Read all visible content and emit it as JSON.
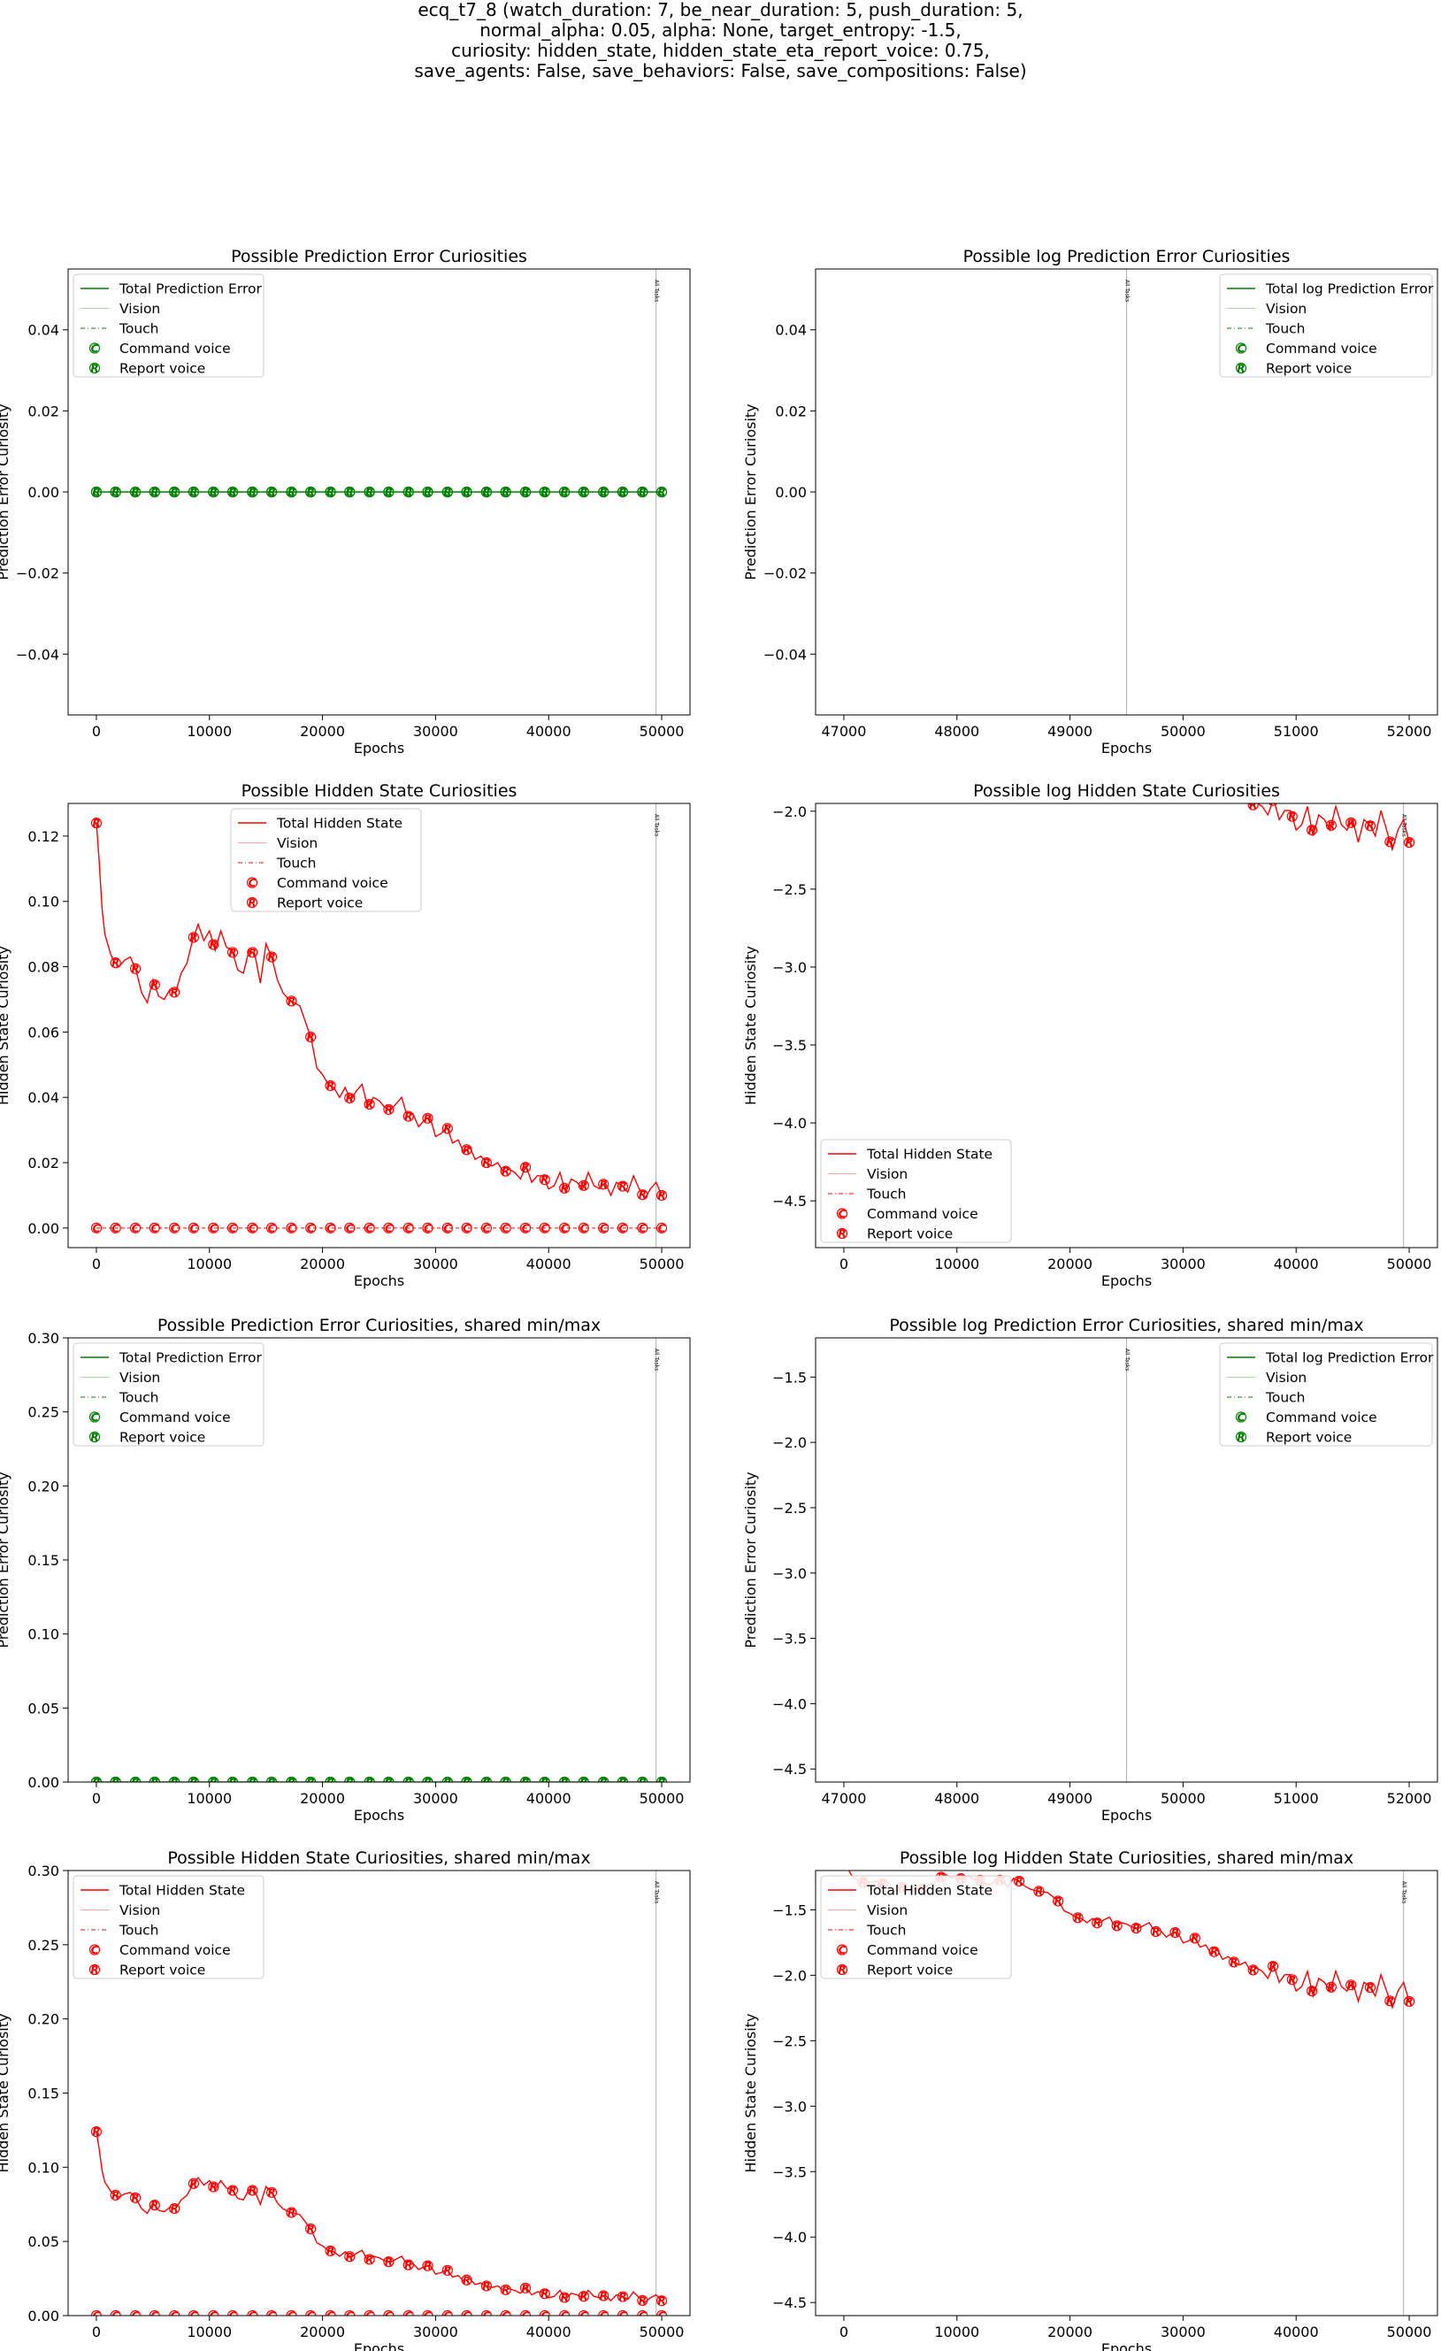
{
  "figure": {
    "title_lines": [
      "ecq_t7_8 (watch_duration: 7, be_near_duration: 5, push_duration: 5,",
      "normal_alpha: 0.05, alpha: None, target_entropy: -1.5,",
      "curiosity: hidden_state, hidden_state_eta_report_voice: 0.75,",
      "save_agents: False, save_behaviors: False, save_compositions: False)"
    ]
  },
  "chart_data": [
    {
      "type": "line",
      "title": "Possible Prediction Error Curiosities",
      "xlabel": "Epochs",
      "ylabel": "Prediction Error Curiosity",
      "xlim": [
        -2500,
        52500
      ],
      "ylim": [
        -0.055,
        0.055
      ],
      "xticks": [
        "0",
        "10000",
        "20000",
        "30000",
        "40000",
        "50000"
      ],
      "yticks": [
        "−0.04",
        "−0.02",
        "0.00",
        "0.02",
        "0.04"
      ],
      "legend_position": "upper left",
      "legend": [
        "Total Prediction Error",
        "Vision",
        "Touch",
        "Command voice",
        "Report voice"
      ],
      "color": "#008000",
      "vline": {
        "x": 49500,
        "label": "All Tasks"
      },
      "series_kind": "flat_zero"
    },
    {
      "type": "line",
      "title": "Possible log Prediction Error Curiosities",
      "xlabel": "Epochs",
      "ylabel": "Prediction Error Curiosity",
      "xlim": [
        46750,
        52250
      ],
      "ylim": [
        -0.055,
        0.055
      ],
      "xticks": [
        "47000",
        "48000",
        "49000",
        "50000",
        "51000",
        "52000"
      ],
      "yticks": [
        "−0.04",
        "−0.02",
        "0.00",
        "0.02",
        "0.04"
      ],
      "legend_position": "upper right",
      "legend": [
        "Total log Prediction Error",
        "Vision",
        "Touch",
        "Command voice",
        "Report voice"
      ],
      "color": "#008000",
      "vline": {
        "x": 49500,
        "label": "All Tasks"
      },
      "series_kind": "none"
    },
    {
      "type": "line",
      "title": "Possible Hidden State Curiosities",
      "xlabel": "Epochs",
      "ylabel": "Hidden State Curiosity",
      "xlim": [
        -2500,
        52500
      ],
      "ylim": [
        -0.006,
        0.13
      ],
      "xticks": [
        "0",
        "10000",
        "20000",
        "30000",
        "40000",
        "50000"
      ],
      "yticks": [
        "0.00",
        "0.02",
        "0.04",
        "0.06",
        "0.08",
        "0.10",
        "0.12"
      ],
      "legend_position": "upper center",
      "legend": [
        "Total Hidden State",
        "Vision",
        "Touch",
        "Command voice",
        "Report voice"
      ],
      "color": "#ff0000",
      "vline": {
        "x": 49500,
        "label": "All Tasks"
      },
      "series_kind": "linear"
    },
    {
      "type": "line",
      "title": "Possible log Hidden State Curiosities",
      "xlabel": "Epochs",
      "ylabel": "Hidden State Curiosity",
      "xlim": [
        -2500,
        52500
      ],
      "ylim": [
        -4.8,
        -1.95
      ],
      "xticks": [
        "0",
        "10000",
        "20000",
        "30000",
        "40000",
        "50000"
      ],
      "yticks": [
        "−4.5",
        "−4.0",
        "−3.5",
        "−3.0",
        "−2.5",
        "−2.0"
      ],
      "legend_position": "lower left",
      "legend": [
        "Total Hidden State",
        "Vision",
        "Touch",
        "Command voice",
        "Report voice"
      ],
      "color": "#ff0000",
      "vline": {
        "x": 49500,
        "label": "All Tasks"
      },
      "series_kind": "log"
    },
    {
      "type": "line",
      "title": "Possible Prediction Error Curiosities, shared min/max",
      "xlabel": "Epochs",
      "ylabel": "Prediction Error Curiosity",
      "xlim": [
        -2500,
        52500
      ],
      "ylim": [
        0,
        0.3
      ],
      "xticks": [
        "0",
        "10000",
        "20000",
        "30000",
        "40000",
        "50000"
      ],
      "yticks": [
        "0.00",
        "0.05",
        "0.10",
        "0.15",
        "0.20",
        "0.25",
        "0.30"
      ],
      "legend_position": "upper left",
      "legend": [
        "Total Prediction Error",
        "Vision",
        "Touch",
        "Command voice",
        "Report voice"
      ],
      "color": "#008000",
      "vline": {
        "x": 49500,
        "label": "All Tasks"
      },
      "series_kind": "flat_zero"
    },
    {
      "type": "line",
      "title": "Possible log Prediction Error Curiosities, shared min/max",
      "xlabel": "Epochs",
      "ylabel": "Prediction Error Curiosity",
      "xlim": [
        46750,
        52250
      ],
      "ylim": [
        -4.6,
        -1.2
      ],
      "xticks": [
        "47000",
        "48000",
        "49000",
        "50000",
        "51000",
        "52000"
      ],
      "yticks": [
        "−4.5",
        "−4.0",
        "−3.5",
        "−3.0",
        "−2.5",
        "−2.0",
        "−1.5"
      ],
      "legend_position": "upper right",
      "legend": [
        "Total log Prediction Error",
        "Vision",
        "Touch",
        "Command voice",
        "Report voice"
      ],
      "color": "#008000",
      "vline": {
        "x": 49500,
        "label": "All Tasks"
      },
      "series_kind": "none"
    },
    {
      "type": "line",
      "title": "Possible Hidden State Curiosities, shared min/max",
      "xlabel": "Epochs",
      "ylabel": "Hidden State Curiosity",
      "xlim": [
        -2500,
        52500
      ],
      "ylim": [
        0,
        0.3
      ],
      "xticks": [
        "0",
        "10000",
        "20000",
        "30000",
        "40000",
        "50000"
      ],
      "yticks": [
        "0.00",
        "0.05",
        "0.10",
        "0.15",
        "0.20",
        "0.25",
        "0.30"
      ],
      "legend_position": "upper left",
      "legend": [
        "Total Hidden State",
        "Vision",
        "Touch",
        "Command voice",
        "Report voice"
      ],
      "color": "#ff0000",
      "vline": {
        "x": 49500,
        "label": "All Tasks"
      },
      "series_kind": "linear"
    },
    {
      "type": "line",
      "title": "Possible log Hidden State Curiosities, shared min/max",
      "xlabel": "Epochs",
      "ylabel": "Hidden State Curiosity",
      "xlim": [
        -2500,
        52500
      ],
      "ylim": [
        -4.6,
        -1.2
      ],
      "xticks": [
        "0",
        "10000",
        "20000",
        "30000",
        "40000",
        "50000"
      ],
      "yticks": [
        "−4.5",
        "−4.0",
        "−3.5",
        "−3.0",
        "−2.5",
        "−2.0",
        "−1.5"
      ],
      "legend_position": "upper left",
      "legend": [
        "Total Hidden State",
        "Vision",
        "Touch",
        "Command voice",
        "Report voice"
      ],
      "color": "#ff0000",
      "vline": {
        "x": 49500,
        "label": "All Tasks"
      },
      "series_kind": "log"
    }
  ],
  "hidden_state_series": {
    "x": [
      0,
      250,
      500,
      750,
      1000,
      1250,
      1500,
      2000,
      2500,
      3000,
      3500,
      4000,
      4500,
      5000,
      5500,
      6000,
      6500,
      7000,
      7500,
      8000,
      8500,
      9000,
      9500,
      10000,
      10500,
      11000,
      11500,
      12000,
      12500,
      13000,
      13500,
      14000,
      14500,
      15000,
      15500,
      16000,
      16500,
      17000,
      17500,
      18000,
      18500,
      19000,
      19500,
      20000,
      20500,
      21000,
      21500,
      22000,
      22500,
      23000,
      23500,
      24000,
      24500,
      25000,
      25500,
      26000,
      26500,
      27000,
      27500,
      28000,
      28500,
      29000,
      29500,
      30000,
      30500,
      31000,
      31500,
      32000,
      32500,
      33000,
      33500,
      34000,
      34500,
      35000,
      35500,
      36000,
      36500,
      37000,
      37500,
      38000,
      38500,
      39000,
      39500,
      40000,
      40500,
      41000,
      41500,
      42000,
      42500,
      43000,
      43500,
      44000,
      44500,
      45000,
      45500,
      46000,
      46500,
      47000,
      47500,
      48000,
      48500,
      49000,
      49500,
      50000
    ],
    "total": [
      0.124,
      0.112,
      0.098,
      0.09,
      0.087,
      0.084,
      0.082,
      0.08,
      0.082,
      0.083,
      0.079,
      0.072,
      0.069,
      0.076,
      0.071,
      0.07,
      0.073,
      0.072,
      0.078,
      0.081,
      0.088,
      0.093,
      0.088,
      0.091,
      0.085,
      0.091,
      0.086,
      0.085,
      0.079,
      0.078,
      0.085,
      0.084,
      0.075,
      0.087,
      0.083,
      0.076,
      0.072,
      0.07,
      0.069,
      0.068,
      0.063,
      0.058,
      0.049,
      0.047,
      0.044,
      0.043,
      0.04,
      0.043,
      0.039,
      0.042,
      0.044,
      0.037,
      0.04,
      0.039,
      0.037,
      0.036,
      0.038,
      0.04,
      0.034,
      0.035,
      0.031,
      0.033,
      0.034,
      0.028,
      0.029,
      0.031,
      0.026,
      0.027,
      0.023,
      0.025,
      0.021,
      0.022,
      0.02,
      0.019,
      0.02,
      0.017,
      0.018,
      0.017,
      0.015,
      0.019,
      0.014,
      0.016,
      0.016,
      0.012,
      0.013,
      0.017,
      0.011,
      0.015,
      0.014,
      0.012,
      0.017,
      0.013,
      0.012,
      0.014,
      0.01,
      0.014,
      0.013,
      0.011,
      0.016,
      0.012,
      0.009,
      0.012,
      0.014,
      0.01
    ],
    "marker_x": [
      0,
      1700,
      3450,
      5150,
      6900,
      8600,
      10350,
      12050,
      13800,
      15500,
      17250,
      18950,
      20700,
      22400,
      24150,
      25850,
      27600,
      29300,
      31050,
      32750,
      34500,
      36200,
      37950,
      39650,
      41400,
      43100,
      44850,
      46550,
      48300,
      50000
    ]
  }
}
